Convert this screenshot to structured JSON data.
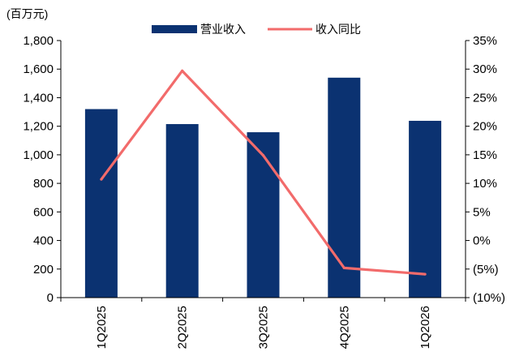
{
  "chart_data": {
    "type": "bar",
    "unit_label": "(百万元)",
    "categories": [
      "1Q2025",
      "2Q2025",
      "3Q2025",
      "4Q2025",
      "1Q2026"
    ],
    "series": [
      {
        "name": "营业收入",
        "type": "bar",
        "axis": "left",
        "color": "#0b3271",
        "values": [
          1320,
          1215,
          1158,
          1540,
          1238
        ]
      },
      {
        "name": "收入同比",
        "type": "line",
        "axis": "right",
        "color": "#f26b6b",
        "values": [
          10.7,
          29.7,
          14.9,
          -4.8,
          -5.9
        ]
      }
    ],
    "y_left": {
      "min": 0,
      "max": 1800,
      "step": 200,
      "tick_labels": [
        "0",
        "200",
        "400",
        "600",
        "800",
        "1,000",
        "1,200",
        "1,400",
        "1,600",
        "1,800"
      ]
    },
    "y_right": {
      "min": -10,
      "max": 35,
      "step": 5,
      "tick_labels": [
        "(10%)",
        "(5%)",
        "0%",
        "5%",
        "10%",
        "15%",
        "20%",
        "25%",
        "30%",
        "35%"
      ]
    },
    "legend_position": "top",
    "grid": false
  }
}
